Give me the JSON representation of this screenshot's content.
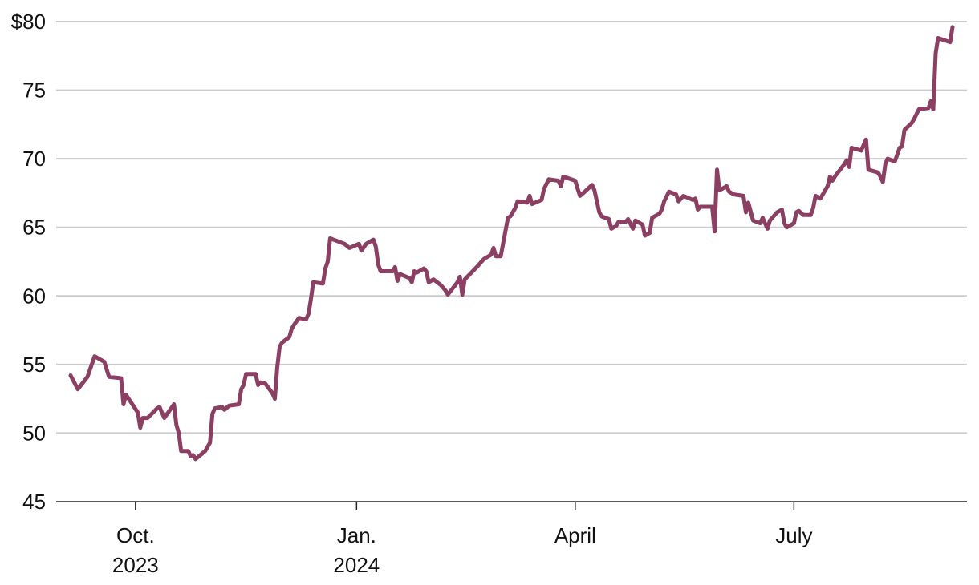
{
  "chart_data": {
    "type": "line",
    "title": "",
    "xlabel": "",
    "ylabel": "",
    "ylim": [
      45,
      80
    ],
    "xlim": [
      "2023-09-04",
      "2024-09-05"
    ],
    "grid": true,
    "line_color": "#8b3f62",
    "y_ticks": [
      {
        "value": 80,
        "label": "$80"
      },
      {
        "value": 75,
        "label": "75"
      },
      {
        "value": 70,
        "label": "70"
      },
      {
        "value": 65,
        "label": "65"
      },
      {
        "value": 60,
        "label": "60"
      },
      {
        "value": 55,
        "label": "55"
      },
      {
        "value": 50,
        "label": "50"
      },
      {
        "value": 45,
        "label": "45"
      }
    ],
    "x_ticks": [
      {
        "date": "2023-10-01",
        "label": "Oct.",
        "sublabel": "2023"
      },
      {
        "date": "2024-01-01",
        "label": "Jan.",
        "sublabel": "2024"
      },
      {
        "date": "2024-04-01",
        "label": "April",
        "sublabel": ""
      },
      {
        "date": "2024-07-01",
        "label": "July",
        "sublabel": ""
      }
    ],
    "series": [
      {
        "points": [
          [
            "2023-09-04",
            54.2
          ],
          [
            "2023-09-07",
            53.2
          ],
          [
            "2023-09-11",
            54.1
          ],
          [
            "2023-09-14",
            55.6
          ],
          [
            "2023-09-18",
            55.2
          ],
          [
            "2023-09-20",
            54.1
          ],
          [
            "2023-09-25",
            54.0
          ],
          [
            "2023-09-26",
            52.1
          ],
          [
            "2023-09-27",
            52.8
          ],
          [
            "2023-10-02",
            51.5
          ],
          [
            "2023-10-03",
            50.4
          ],
          [
            "2023-10-04",
            51.1
          ],
          [
            "2023-10-06",
            51.1
          ],
          [
            "2023-10-10",
            51.8
          ],
          [
            "2023-10-11",
            51.9
          ],
          [
            "2023-10-13",
            51.1
          ],
          [
            "2023-10-17",
            52.1
          ],
          [
            "2023-10-18",
            50.6
          ],
          [
            "2023-10-19",
            50.0
          ],
          [
            "2023-10-20",
            48.7
          ],
          [
            "2023-10-23",
            48.7
          ],
          [
            "2023-10-24",
            48.3
          ],
          [
            "2023-10-25",
            48.4
          ],
          [
            "2023-10-26",
            48.1
          ],
          [
            "2023-10-30",
            48.7
          ],
          [
            "2023-11-01",
            49.3
          ],
          [
            "2023-11-02",
            51.4
          ],
          [
            "2023-11-03",
            51.8
          ],
          [
            "2023-11-06",
            51.9
          ],
          [
            "2023-11-07",
            51.7
          ],
          [
            "2023-11-09",
            52.0
          ],
          [
            "2023-11-13",
            52.1
          ],
          [
            "2023-11-14",
            53.2
          ],
          [
            "2023-11-15",
            53.5
          ],
          [
            "2023-11-16",
            54.3
          ],
          [
            "2023-11-20",
            54.3
          ],
          [
            "2023-11-21",
            53.5
          ],
          [
            "2023-11-22",
            53.7
          ],
          [
            "2023-11-24",
            53.6
          ],
          [
            "2023-11-27",
            52.9
          ],
          [
            "2023-11-28",
            52.5
          ],
          [
            "2023-11-29",
            54.8
          ],
          [
            "2023-11-30",
            56.3
          ],
          [
            "2023-12-01",
            56.6
          ],
          [
            "2023-12-04",
            57.0
          ],
          [
            "2023-12-05",
            57.6
          ],
          [
            "2023-12-06",
            57.9
          ],
          [
            "2023-12-08",
            58.4
          ],
          [
            "2023-12-11",
            58.3
          ],
          [
            "2023-12-12",
            58.7
          ],
          [
            "2023-12-13",
            59.8
          ],
          [
            "2023-12-14",
            61.0
          ],
          [
            "2023-12-18",
            60.9
          ],
          [
            "2023-12-19",
            62.0
          ],
          [
            "2023-12-20",
            62.5
          ],
          [
            "2023-12-21",
            64.2
          ],
          [
            "2023-12-27",
            63.8
          ],
          [
            "2023-12-29",
            63.5
          ],
          [
            "2024-01-02",
            63.8
          ],
          [
            "2024-01-03",
            63.3
          ],
          [
            "2024-01-05",
            63.8
          ],
          [
            "2024-01-08",
            64.1
          ],
          [
            "2024-01-09",
            63.6
          ],
          [
            "2024-01-10",
            62.3
          ],
          [
            "2024-01-11",
            61.8
          ],
          [
            "2024-01-16",
            61.8
          ],
          [
            "2024-01-17",
            62.1
          ],
          [
            "2024-01-18",
            61.1
          ],
          [
            "2024-01-19",
            61.6
          ],
          [
            "2024-01-23",
            61.3
          ],
          [
            "2024-01-24",
            61.0
          ],
          [
            "2024-01-25",
            61.8
          ],
          [
            "2024-01-26",
            61.7
          ],
          [
            "2024-01-29",
            62.0
          ],
          [
            "2024-01-30",
            61.8
          ],
          [
            "2024-01-31",
            61.0
          ],
          [
            "2024-02-02",
            61.2
          ],
          [
            "2024-02-05",
            60.8
          ],
          [
            "2024-02-07",
            60.4
          ],
          [
            "2024-02-08",
            60.1
          ],
          [
            "2024-02-12",
            61.0
          ],
          [
            "2024-02-13",
            61.4
          ],
          [
            "2024-02-14",
            60.1
          ],
          [
            "2024-02-15",
            61.2
          ],
          [
            "2024-02-20",
            62.1
          ],
          [
            "2024-02-23",
            62.7
          ],
          [
            "2024-02-26",
            63.0
          ],
          [
            "2024-02-27",
            63.5
          ],
          [
            "2024-02-28",
            62.9
          ],
          [
            "2024-03-01",
            62.9
          ],
          [
            "2024-03-04",
            65.7
          ],
          [
            "2024-03-05",
            65.8
          ],
          [
            "2024-03-07",
            66.4
          ],
          [
            "2024-03-08",
            66.9
          ],
          [
            "2024-03-12",
            66.8
          ],
          [
            "2024-03-13",
            67.3
          ],
          [
            "2024-03-14",
            66.7
          ],
          [
            "2024-03-18",
            67.0
          ],
          [
            "2024-03-19",
            67.8
          ],
          [
            "2024-03-21",
            68.5
          ],
          [
            "2024-03-25",
            68.4
          ],
          [
            "2024-03-26",
            68.0
          ],
          [
            "2024-03-27",
            68.7
          ],
          [
            "2024-04-01",
            68.4
          ],
          [
            "2024-04-02",
            67.8
          ],
          [
            "2024-04-03",
            67.3
          ],
          [
            "2024-04-05",
            67.6
          ],
          [
            "2024-04-08",
            68.1
          ],
          [
            "2024-04-09",
            67.7
          ],
          [
            "2024-04-11",
            66.1
          ],
          [
            "2024-04-12",
            65.8
          ],
          [
            "2024-04-15",
            65.6
          ],
          [
            "2024-04-16",
            64.9
          ],
          [
            "2024-04-18",
            65.1
          ],
          [
            "2024-04-19",
            65.4
          ],
          [
            "2024-04-22",
            65.4
          ],
          [
            "2024-04-23",
            65.6
          ],
          [
            "2024-04-25",
            64.9
          ],
          [
            "2024-04-26",
            65.5
          ],
          [
            "2024-04-29",
            65.2
          ],
          [
            "2024-04-30",
            64.4
          ],
          [
            "2024-05-02",
            64.6
          ],
          [
            "2024-05-03",
            65.7
          ],
          [
            "2024-05-06",
            66.0
          ],
          [
            "2024-05-07",
            66.3
          ],
          [
            "2024-05-08",
            66.9
          ],
          [
            "2024-05-10",
            67.6
          ],
          [
            "2024-05-13",
            67.4
          ],
          [
            "2024-05-14",
            66.9
          ],
          [
            "2024-05-16",
            67.3
          ],
          [
            "2024-05-20",
            67.0
          ],
          [
            "2024-05-21",
            67.1
          ],
          [
            "2024-05-22",
            66.3
          ],
          [
            "2024-05-23",
            66.5
          ],
          [
            "2024-05-28",
            66.5
          ],
          [
            "2024-05-29",
            64.7
          ],
          [
            "2024-05-30",
            69.2
          ],
          [
            "2024-05-31",
            67.7
          ],
          [
            "2024-06-03",
            68.0
          ],
          [
            "2024-06-04",
            67.6
          ],
          [
            "2024-06-06",
            67.4
          ],
          [
            "2024-06-10",
            67.3
          ],
          [
            "2024-06-11",
            66.1
          ],
          [
            "2024-06-12",
            66.8
          ],
          [
            "2024-06-14",
            65.5
          ],
          [
            "2024-06-17",
            65.3
          ],
          [
            "2024-06-18",
            65.7
          ],
          [
            "2024-06-20",
            64.9
          ],
          [
            "2024-06-21",
            65.5
          ],
          [
            "2024-06-24",
            66.1
          ],
          [
            "2024-06-26",
            66.3
          ],
          [
            "2024-06-27",
            65.3
          ],
          [
            "2024-06-28",
            65.0
          ],
          [
            "2024-07-01",
            65.3
          ],
          [
            "2024-07-02",
            66.1
          ],
          [
            "2024-07-03",
            66.2
          ],
          [
            "2024-07-05",
            65.9
          ],
          [
            "2024-07-08",
            65.9
          ],
          [
            "2024-07-09",
            66.4
          ],
          [
            "2024-07-10",
            67.3
          ],
          [
            "2024-07-12",
            67.1
          ],
          [
            "2024-07-15",
            68.0
          ],
          [
            "2024-07-16",
            68.7
          ],
          [
            "2024-07-17",
            68.4
          ],
          [
            "2024-07-18",
            68.7
          ],
          [
            "2024-07-22",
            69.6
          ],
          [
            "2024-07-23",
            69.9
          ],
          [
            "2024-07-24",
            69.4
          ],
          [
            "2024-07-25",
            70.8
          ],
          [
            "2024-07-29",
            70.6
          ],
          [
            "2024-07-31",
            71.4
          ],
          [
            "2024-08-01",
            69.2
          ],
          [
            "2024-08-05",
            69.0
          ],
          [
            "2024-08-06",
            68.7
          ],
          [
            "2024-08-07",
            68.3
          ],
          [
            "2024-08-08",
            69.6
          ],
          [
            "2024-08-09",
            70.0
          ],
          [
            "2024-08-12",
            69.8
          ],
          [
            "2024-08-14",
            70.8
          ],
          [
            "2024-08-15",
            70.9
          ],
          [
            "2024-08-16",
            72.1
          ],
          [
            "2024-08-19",
            72.6
          ],
          [
            "2024-08-20",
            72.9
          ],
          [
            "2024-08-22",
            73.6
          ],
          [
            "2024-08-26",
            73.7
          ],
          [
            "2024-08-27",
            74.2
          ],
          [
            "2024-08-28",
            73.6
          ],
          [
            "2024-08-29",
            77.7
          ],
          [
            "2024-08-30",
            78.8
          ],
          [
            "2024-09-04",
            78.5
          ],
          [
            "2024-09-05",
            79.6
          ]
        ]
      }
    ]
  }
}
